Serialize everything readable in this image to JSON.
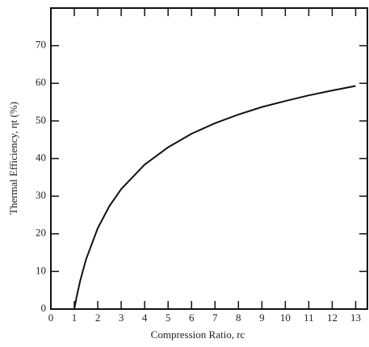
{
  "chart_data": {
    "type": "line",
    "x_label": "Compression Ratio, rc",
    "y_label": "Thermal Efficiency, ηt (%)",
    "x": [
      1,
      1.1,
      1.25,
      1.5,
      2,
      2.5,
      3,
      4,
      5,
      6,
      7,
      8,
      9,
      10,
      11,
      12,
      13
    ],
    "series": [
      {
        "color": "#111111",
        "values": [
          0,
          3.3,
          7.5,
          13.2,
          21.5,
          27.4,
          31.9,
          38.4,
          43.0,
          46.6,
          49.4,
          51.7,
          53.7,
          55.3,
          56.8,
          58.1,
          59.3
        ]
      }
    ],
    "xlim": [
      0,
      13.5
    ],
    "ylim": [
      0,
      80
    ],
    "xticks": [
      0,
      1,
      2,
      3,
      4,
      5,
      6,
      7,
      8,
      9,
      10,
      11,
      12,
      13
    ],
    "yticks": [
      0,
      10,
      20,
      30,
      40,
      50,
      60,
      70
    ]
  }
}
